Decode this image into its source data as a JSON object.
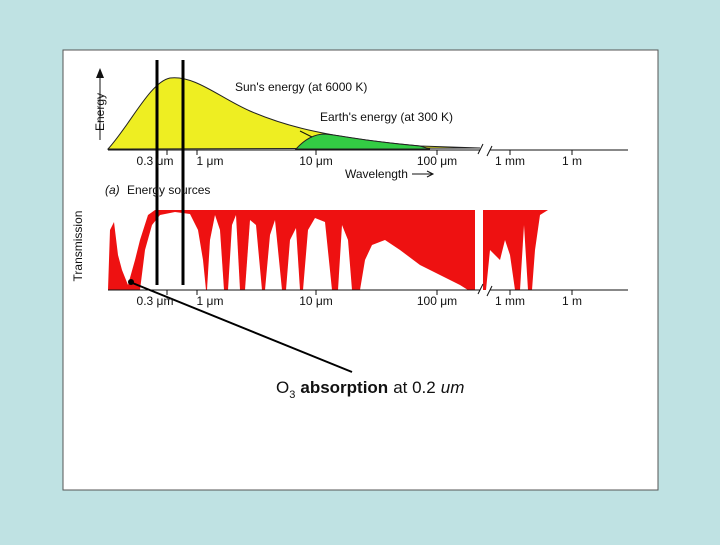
{
  "slide": {
    "figure": {
      "panel_a": {
        "y_axis_label": "Energy",
        "sun_label": "Sun's energy (at 6000 K)",
        "earth_label": "Earth's energy (at 300 K)",
        "x_ticks": [
          "0.3 μm",
          "1 μm",
          "10 μm",
          "100 μm",
          "1 mm",
          "1 m"
        ],
        "x_axis_label": "Wavelength",
        "caption_letter": "(a)",
        "caption": "Energy sources"
      },
      "panel_b": {
        "y_axis_label": "Transmission",
        "x_ticks": [
          "0.3 μm",
          "1 μm",
          "10 μm",
          "100 μm",
          "1 mm",
          "1 m"
        ]
      }
    },
    "annotation": {
      "species": "O",
      "subscript": "3",
      "label": "absorption",
      "detail": "at 0.2",
      "unit": "um"
    }
  }
}
